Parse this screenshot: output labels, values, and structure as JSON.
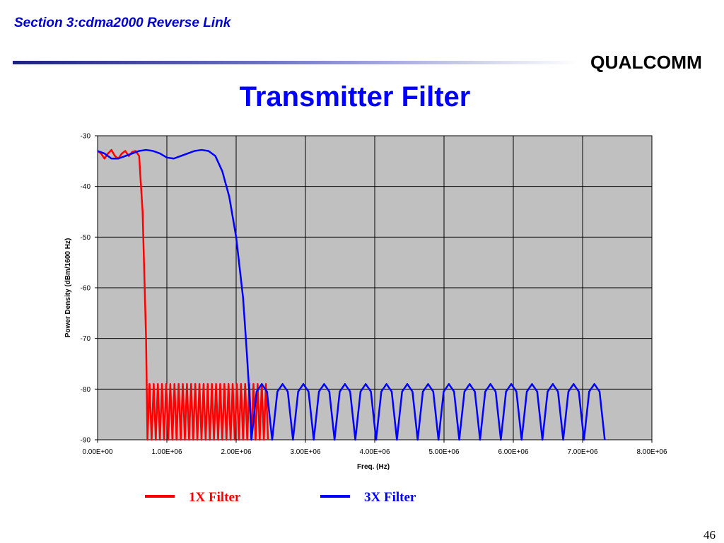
{
  "slide": {
    "header": "Section 3:cdma2000 Reverse Link",
    "logo": "QUALCOMM",
    "page_number": "46"
  },
  "chart_data": {
    "type": "line",
    "title": "Transmitter Filter",
    "x_label": "Freq. (Hz)",
    "y_label": "Power Density (dBm/1600 Hz)",
    "xlim": [
      0,
      8000000
    ],
    "ylim": [
      -90,
      -30
    ],
    "xticks": [
      {
        "value": 0,
        "label": "0.00E+00"
      },
      {
        "value": 1000000,
        "label": "1.00E+06"
      },
      {
        "value": 2000000,
        "label": "2.00E+06"
      },
      {
        "value": 3000000,
        "label": "3.00E+06"
      },
      {
        "value": 4000000,
        "label": "4.00E+06"
      },
      {
        "value": 5000000,
        "label": "5.00E+06"
      },
      {
        "value": 6000000,
        "label": "6.00E+06"
      },
      {
        "value": 7000000,
        "label": "7.00E+06"
      },
      {
        "value": 8000000,
        "label": "8.00E+06"
      }
    ],
    "yticks": [
      -30,
      -40,
      -50,
      -60,
      -70,
      -80,
      -90
    ],
    "grid": true,
    "plot_background": "#c0c0c0",
    "legend": "bottom",
    "series": [
      {
        "name": "1X Filter",
        "color": "#ff0000",
        "x": [
          0,
          50000,
          100000,
          150000,
          200000,
          250000,
          300000,
          350000,
          400000,
          450000,
          500000,
          550000,
          600000,
          650000,
          700000,
          720000,
          750000,
          780000,
          810000,
          840000,
          870000,
          900000,
          930000,
          960000,
          990000,
          1020000,
          1050000,
          1080000,
          1110000,
          1140000,
          1170000,
          1200000,
          1230000,
          1260000,
          1290000,
          1320000,
          1350000,
          1380000,
          1410000,
          1440000,
          1470000,
          1500000,
          1530000,
          1560000,
          1590000,
          1620000,
          1650000,
          1680000,
          1710000,
          1740000,
          1770000,
          1800000,
          1830000,
          1860000,
          1890000,
          1920000,
          1950000,
          1980000,
          2010000,
          2040000,
          2070000,
          2100000,
          2130000,
          2160000,
          2190000,
          2220000,
          2250000,
          2280000,
          2310000,
          2340000,
          2370000,
          2400000,
          2430000,
          2460000
        ],
        "values": [
          -33,
          -33.5,
          -34.5,
          -33.5,
          -32.8,
          -34,
          -34.5,
          -33.5,
          -33,
          -34,
          -33.2,
          -33,
          -34,
          -45,
          -70,
          -90,
          -79,
          -90,
          -79,
          -90,
          -79,
          -90,
          -79,
          -90,
          -79,
          -90,
          -79,
          -90,
          -79,
          -90,
          -79,
          -90,
          -79,
          -90,
          -79,
          -90,
          -79,
          -90,
          -79,
          -90,
          -79,
          -90,
          -79,
          -90,
          -79,
          -90,
          -79,
          -90,
          -79,
          -90,
          -79,
          -90,
          -79,
          -90,
          -79,
          -90,
          -79,
          -90,
          -79,
          -90,
          -79,
          -90,
          -79,
          -90,
          -79,
          -90,
          -79,
          -90,
          -79,
          -90,
          -79,
          -90,
          -79,
          -90
        ]
      },
      {
        "name": "3X Filter",
        "color": "#0000ff",
        "x": [
          0,
          100000,
          200000,
          300000,
          400000,
          500000,
          600000,
          700000,
          800000,
          900000,
          1000000,
          1100000,
          1200000,
          1300000,
          1400000,
          1500000,
          1600000,
          1700000,
          1800000,
          1900000,
          2000000,
          2100000,
          2150000,
          2200000,
          2220000,
          2295000,
          2370000,
          2445000,
          2520000,
          2595000,
          2670000,
          2745000,
          2820000,
          2895000,
          2970000,
          3045000,
          3120000,
          3195000,
          3270000,
          3345000,
          3420000,
          3495000,
          3570000,
          3645000,
          3720000,
          3795000,
          3870000,
          3945000,
          4020000,
          4095000,
          4170000,
          4245000,
          4320000,
          4395000,
          4470000,
          4545000,
          4620000,
          4695000,
          4770000,
          4845000,
          4920000,
          4995000,
          5070000,
          5145000,
          5220000,
          5295000,
          5370000,
          5445000,
          5520000,
          5595000,
          5670000,
          5745000,
          5820000,
          5895000,
          5970000,
          6045000,
          6120000,
          6195000,
          6270000,
          6345000,
          6420000,
          6495000,
          6570000,
          6645000,
          6720000,
          6795000,
          6870000,
          6945000,
          7020000,
          7095000,
          7170000,
          7245000,
          7320000
        ],
        "values": [
          -33,
          -33.5,
          -34.5,
          -34.5,
          -34,
          -33.5,
          -33,
          -32.8,
          -33,
          -33.5,
          -34.3,
          -34.5,
          -34,
          -33.5,
          -33,
          -32.8,
          -33,
          -34,
          -37,
          -42,
          -50,
          -62,
          -72,
          -83,
          -90,
          -80.5,
          -79,
          -80.5,
          -90,
          -80.5,
          -79,
          -80.5,
          -90,
          -80.5,
          -79,
          -80.5,
          -90,
          -80.5,
          -79,
          -80.5,
          -90,
          -80.5,
          -79,
          -80.5,
          -90,
          -80.5,
          -79,
          -80.5,
          -90,
          -80.5,
          -79,
          -80.5,
          -90,
          -80.5,
          -79,
          -80.5,
          -90,
          -80.5,
          -79,
          -80.5,
          -90,
          -80.5,
          -79,
          -80.5,
          -90,
          -80.5,
          -79,
          -80.5,
          -90,
          -80.5,
          -79,
          -80.5,
          -90,
          -80.5,
          -79,
          -80.5,
          -90,
          -80.5,
          -79,
          -80.5,
          -90,
          -80.5,
          -79,
          -80.5,
          -90,
          -80.5,
          -79,
          -80.5,
          -90,
          -80.5,
          -79,
          -80.5,
          -90
        ]
      }
    ]
  }
}
